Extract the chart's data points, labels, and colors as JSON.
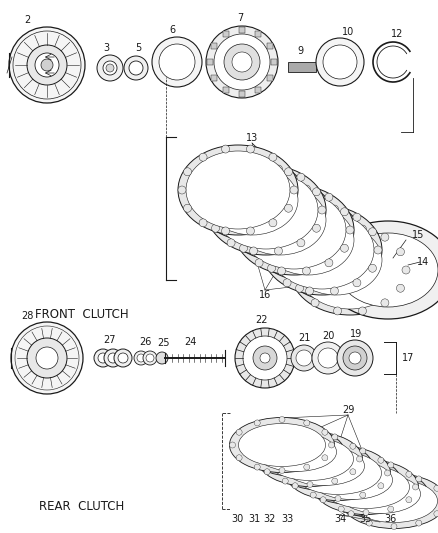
{
  "background_color": "#ffffff",
  "line_color": "#1a1a1a",
  "front_clutch_label": "FRONT  CLUTCH",
  "rear_clutch_label": "REAR  CLUTCH",
  "font_size_label": 8.5,
  "font_size_number": 7,
  "fig_width": 4.38,
  "fig_height": 5.33,
  "dpi": 100
}
